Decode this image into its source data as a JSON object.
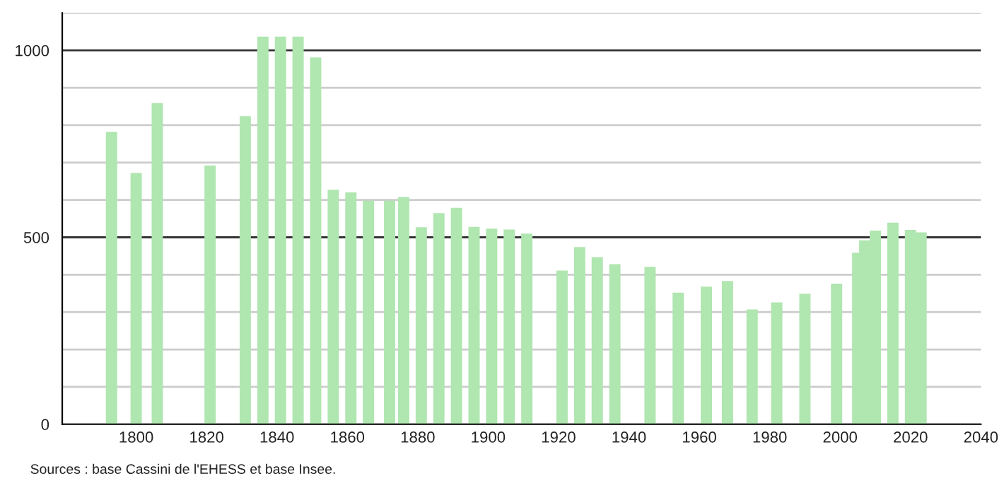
{
  "chart_data": {
    "type": "bar",
    "x": [
      1793,
      1800,
      1806,
      1821,
      1831,
      1836,
      1841,
      1846,
      1851,
      1856,
      1861,
      1866,
      1872,
      1876,
      1881,
      1886,
      1891,
      1896,
      1901,
      1906,
      1911,
      1921,
      1926,
      1931,
      1936,
      1946,
      1954,
      1962,
      1968,
      1975,
      1982,
      1990,
      1999,
      2005,
      2007,
      2010,
      2015,
      2020,
      2023
    ],
    "values": [
      782,
      672,
      859,
      692,
      824,
      1037,
      1037,
      1037,
      981,
      627,
      620,
      598,
      598,
      608,
      527,
      565,
      579,
      528,
      523,
      521,
      510,
      411,
      474,
      447,
      428,
      421,
      352,
      368,
      383,
      307,
      326,
      349,
      376,
      459,
      492,
      518,
      539,
      520,
      513
    ],
    "color": "#b0e6b0",
    "xlim": [
      1779,
      2040
    ],
    "xticks": [
      1800,
      1820,
      1840,
      1860,
      1880,
      1900,
      1920,
      1940,
      1960,
      1980,
      2000,
      2020,
      2040
    ],
    "ylim": [
      0,
      1100
    ],
    "yticks": [
      0,
      {
        "value": 100,
        "label": null
      },
      {
        "value": 200,
        "label": null
      },
      {
        "value": 300,
        "label": null
      },
      {
        "value": 400,
        "label": null
      },
      500,
      {
        "value": 600,
        "label": null
      },
      {
        "value": 700,
        "label": null
      },
      {
        "value": 800,
        "label": null
      },
      {
        "value": 900,
        "label": null
      },
      1000,
      {
        "value": 1100,
        "label": null
      }
    ],
    "grid": "y",
    "annotations": [
      "Sources : base Cassini de l'EHESS et base Insee."
    ]
  }
}
